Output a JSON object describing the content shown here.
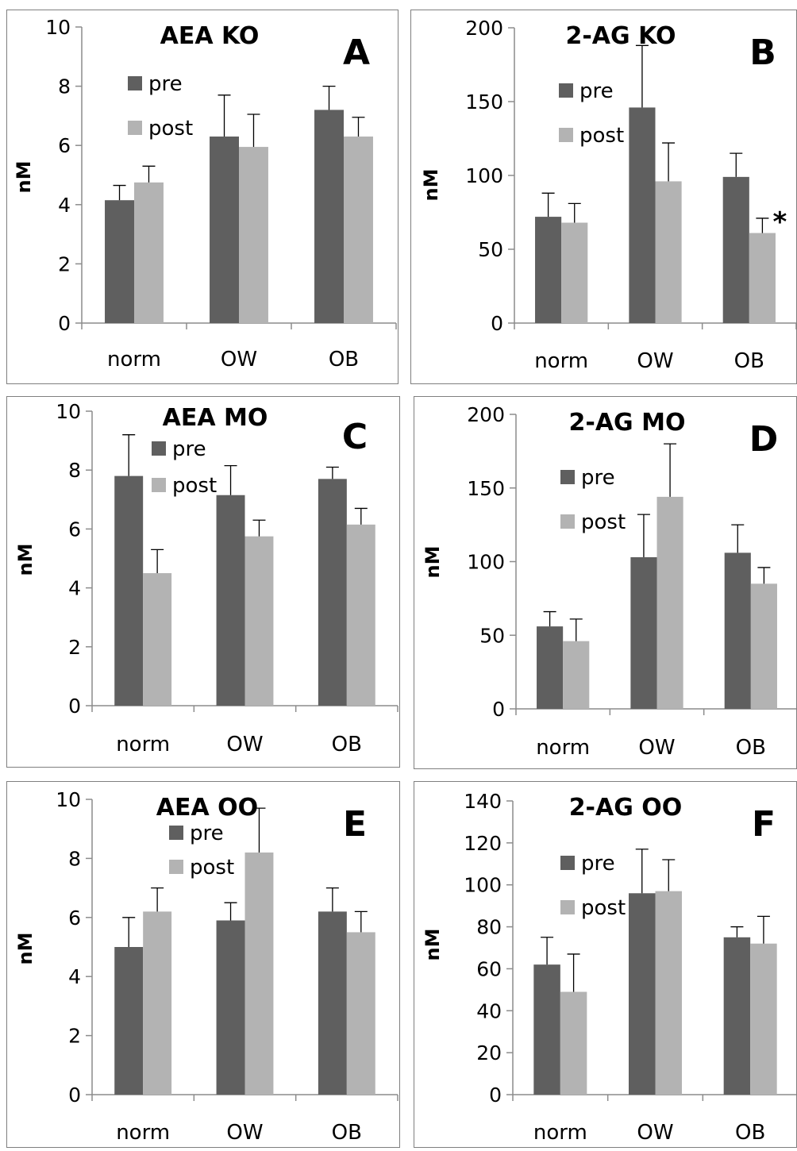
{
  "chart_data": [
    {
      "type": "bar",
      "title": "AEA KO",
      "panel_label": "A",
      "ylabel": "nM",
      "ylim": [
        0,
        10
      ],
      "yticks": [
        0,
        2,
        4,
        6,
        8,
        10
      ],
      "categories": [
        "norm",
        "OW",
        "OB"
      ],
      "series": [
        {
          "name": "pre",
          "color": "#5f5f5f",
          "values": [
            4.15,
            6.3,
            7.2
          ],
          "errors": [
            0.5,
            1.4,
            0.8
          ]
        },
        {
          "name": "post",
          "color": "#b3b3b3",
          "values": [
            4.75,
            5.95,
            6.3
          ],
          "errors": [
            0.55,
            1.1,
            0.65
          ]
        }
      ],
      "annotations": [],
      "legend": "top-left"
    },
    {
      "type": "bar",
      "title": "2-AG KO",
      "panel_label": "B",
      "ylabel": "nM",
      "ylim": [
        0,
        200
      ],
      "yticks": [
        0,
        50,
        100,
        150,
        200
      ],
      "categories": [
        "norm",
        "OW",
        "OB"
      ],
      "series": [
        {
          "name": "pre",
          "color": "#5f5f5f",
          "values": [
            72,
            146,
            99
          ],
          "errors": [
            16,
            42,
            16
          ]
        },
        {
          "name": "post",
          "color": "#b3b3b3",
          "values": [
            68,
            96,
            61
          ],
          "errors": [
            13,
            26,
            10
          ]
        }
      ],
      "annotations": [
        {
          "text": "*",
          "category": "OB",
          "series": "post"
        }
      ],
      "legend": "top-left"
    },
    {
      "type": "bar",
      "title": "AEA MO",
      "panel_label": "C",
      "ylabel": "nM",
      "ylim": [
        0,
        10
      ],
      "yticks": [
        0,
        2,
        4,
        6,
        8,
        10
      ],
      "categories": [
        "norm",
        "OW",
        "OB"
      ],
      "series": [
        {
          "name": "pre",
          "color": "#5f5f5f",
          "values": [
            7.8,
            7.15,
            7.7
          ],
          "errors": [
            1.4,
            1.0,
            0.4
          ]
        },
        {
          "name": "post",
          "color": "#b3b3b3",
          "values": [
            4.5,
            5.75,
            6.15
          ],
          "errors": [
            0.8,
            0.55,
            0.55
          ]
        }
      ],
      "annotations": [],
      "legend": "top-left"
    },
    {
      "type": "bar",
      "title": "2-AG MO",
      "panel_label": "D",
      "ylabel": "nM",
      "ylim": [
        0,
        200
      ],
      "yticks": [
        0,
        50,
        100,
        150,
        200
      ],
      "categories": [
        "norm",
        "OW",
        "OB"
      ],
      "series": [
        {
          "name": "pre",
          "color": "#5f5f5f",
          "values": [
            56,
            103,
            106
          ],
          "errors": [
            10,
            29,
            19
          ]
        },
        {
          "name": "post",
          "color": "#b3b3b3",
          "values": [
            46,
            144,
            85
          ],
          "errors": [
            15,
            36,
            11
          ]
        }
      ],
      "annotations": [],
      "legend": "top-left"
    },
    {
      "type": "bar",
      "title": "AEA OO",
      "panel_label": "E",
      "ylabel": "nM",
      "ylim": [
        0,
        10
      ],
      "yticks": [
        0,
        2,
        4,
        6,
        8,
        10
      ],
      "categories": [
        "norm",
        "OW",
        "OB"
      ],
      "series": [
        {
          "name": "pre",
          "color": "#5f5f5f",
          "values": [
            5.0,
            5.9,
            6.2
          ],
          "errors": [
            1.0,
            0.6,
            0.8
          ]
        },
        {
          "name": "post",
          "color": "#b3b3b3",
          "values": [
            6.2,
            8.2,
            5.5
          ],
          "errors": [
            0.8,
            1.5,
            0.7
          ]
        }
      ],
      "annotations": [],
      "legend": "top-center"
    },
    {
      "type": "bar",
      "title": "2-AG OO",
      "panel_label": "F",
      "ylabel": "nM",
      "ylim": [
        0,
        140
      ],
      "yticks": [
        0,
        20,
        40,
        60,
        80,
        100,
        120,
        140
      ],
      "categories": [
        "norm",
        "OW",
        "OB"
      ],
      "series": [
        {
          "name": "pre",
          "color": "#5f5f5f",
          "values": [
            62,
            96,
            75
          ],
          "errors": [
            13,
            21,
            5
          ]
        },
        {
          "name": "post",
          "color": "#b3b3b3",
          "values": [
            49,
            97,
            72
          ],
          "errors": [
            18,
            15,
            13
          ]
        }
      ],
      "annotations": [],
      "legend": "top-left"
    }
  ]
}
